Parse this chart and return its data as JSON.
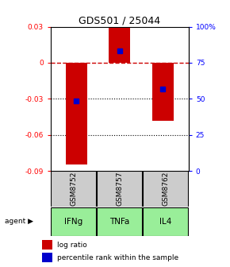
{
  "title": "GDS501 / 25044",
  "samples": [
    "GSM8752",
    "GSM8757",
    "GSM8762"
  ],
  "agents": [
    "IFNg",
    "TNFa",
    "IL4"
  ],
  "log_ratios": [
    -0.085,
    0.029,
    -0.048
  ],
  "percentile_values": [
    -0.032,
    0.01,
    -0.022
  ],
  "ylim": [
    -0.09,
    0.03
  ],
  "yticks_left": [
    -0.09,
    -0.06,
    -0.03,
    0.0,
    0.03
  ],
  "yticks_left_labels": [
    "-0.09",
    "-0.06",
    "-0.03",
    "0",
    "0.03"
  ],
  "yticks_right_pct": [
    0,
    25,
    50,
    75,
    100
  ],
  "yticks_right_labels": [
    "0",
    "25",
    "50",
    "75",
    "100%"
  ],
  "bar_color": "#cc0000",
  "dot_color": "#0000cc",
  "zero_line_color": "#cc0000",
  "grid_color": "#000000",
  "agent_colors": [
    "#aaffaa",
    "#bbffbb",
    "#66dd66"
  ],
  "sample_box_color": "#cccccc",
  "bar_width": 0.5,
  "figsize": [
    2.9,
    3.36
  ],
  "dpi": 100
}
